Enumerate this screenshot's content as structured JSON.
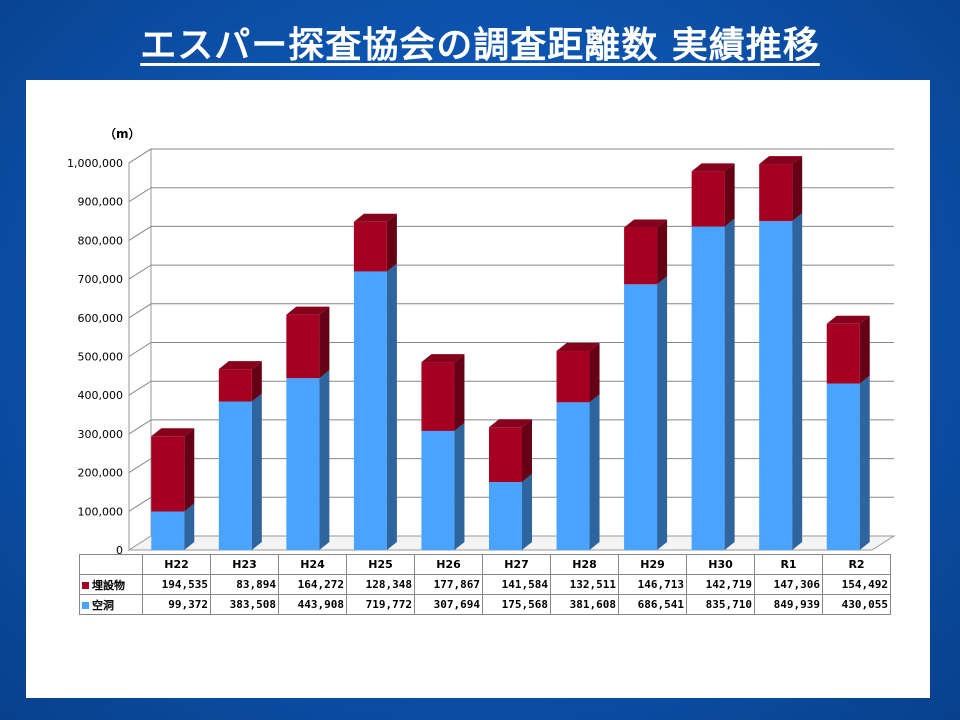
{
  "page": {
    "title": "エスパー探査協会の調査距離数 実績推移"
  },
  "colors": {
    "buried": "#a50021",
    "cavity": "#4aa3ff",
    "background": "#0d56b3"
  },
  "chart_data": {
    "type": "bar",
    "stacked": true,
    "unit_label": "（m）",
    "categories": [
      "H22",
      "H23",
      "H24",
      "H25",
      "H26",
      "H27",
      "H28",
      "H29",
      "H30",
      "R1",
      "R2"
    ],
    "series": [
      {
        "name": "空洞",
        "values": [
          99372,
          383508,
          443908,
          719772,
          307694,
          175568,
          381608,
          686541,
          835710,
          849939,
          430055
        ]
      },
      {
        "name": "埋設物",
        "values": [
          194535,
          83894,
          164272,
          128348,
          177867,
          141584,
          132511,
          146713,
          142719,
          147306,
          154492
        ]
      }
    ],
    "table_rows": [
      {
        "label": "埋設物",
        "cells": [
          "194,535",
          "83,894",
          "164,272",
          "128,348",
          "177,867",
          "141,584",
          "132,511",
          "146,713",
          "142,719",
          "147,306",
          "154,492"
        ]
      },
      {
        "label": "空洞",
        "cells": [
          "99,372",
          "383,508",
          "443,908",
          "719,772",
          "307,694",
          "175,568",
          "381,608",
          "686,541",
          "835,710",
          "849,939",
          "430,055"
        ]
      }
    ],
    "ylim": [
      0,
      1000000
    ],
    "yticks": [
      "0",
      "100,000",
      "200,000",
      "300,000",
      "400,000",
      "500,000",
      "600,000",
      "700,000",
      "800,000",
      "900,000",
      "1,000,000"
    ],
    "grid": true,
    "legend": "data-table"
  }
}
